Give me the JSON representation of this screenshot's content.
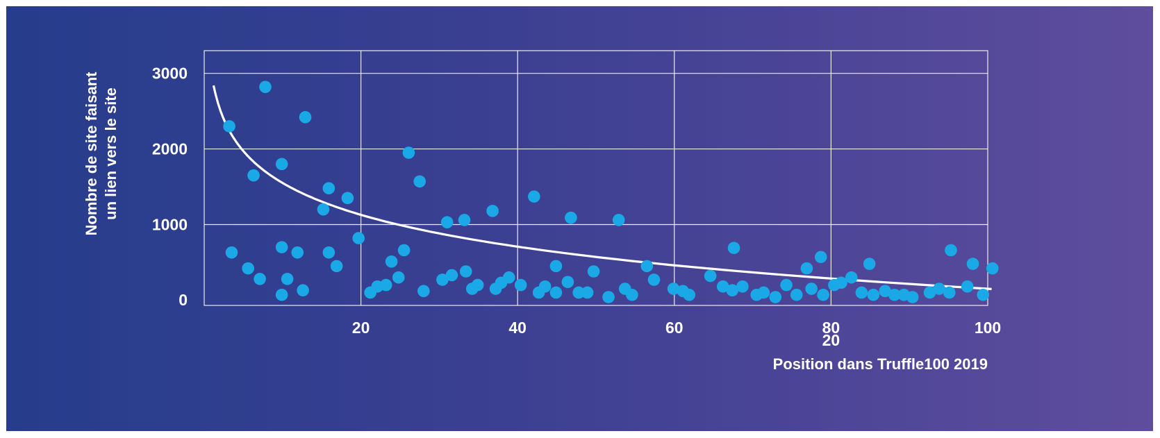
{
  "chart_data": {
    "type": "scatter",
    "title": "",
    "xlabel": "Position dans Truffle100 2019",
    "ylabel_lines": [
      "Nombre de site faisant",
      "un lien vers le site"
    ],
    "xlim": [
      0,
      100
    ],
    "ylim": [
      -70,
      3300
    ],
    "x_ticks": [
      20,
      40,
      60,
      80,
      100
    ],
    "x_tick_labels": [
      "20",
      "40",
      "60",
      "80",
      "100"
    ],
    "extra_label": {
      "text": "20",
      "x": 80
    },
    "y_ticks": [
      0,
      1000,
      2000,
      3000
    ],
    "y_tick_labels": [
      "0",
      "1000",
      "2000",
      "3000"
    ],
    "grid": true,
    "colors": {
      "points": "#1aa9e6",
      "trend": "#ffffff",
      "grid": "#ffffff",
      "text": "#ffffff"
    },
    "trend": {
      "type": "logarithmic",
      "a": 2950,
      "b": -608,
      "x_range": [
        1.2,
        100.5
      ]
    },
    "points": [
      {
        "x": 3.2,
        "y": 2300
      },
      {
        "x": 3.5,
        "y": 630
      },
      {
        "x": 5.6,
        "y": 420
      },
      {
        "x": 6.3,
        "y": 1650
      },
      {
        "x": 7.1,
        "y": 280
      },
      {
        "x": 7.8,
        "y": 2820
      },
      {
        "x": 9.9,
        "y": 1800
      },
      {
        "x": 9.9,
        "y": 700
      },
      {
        "x": 9.9,
        "y": 70
      },
      {
        "x": 10.6,
        "y": 280
      },
      {
        "x": 11.9,
        "y": 630
      },
      {
        "x": 12.6,
        "y": 130
      },
      {
        "x": 12.9,
        "y": 2420
      },
      {
        "x": 15.2,
        "y": 1200
      },
      {
        "x": 15.9,
        "y": 1480
      },
      {
        "x": 15.9,
        "y": 630
      },
      {
        "x": 16.9,
        "y": 450
      },
      {
        "x": 18.3,
        "y": 1350
      },
      {
        "x": 19.7,
        "y": 820
      },
      {
        "x": 21.2,
        "y": 100
      },
      {
        "x": 22.1,
        "y": 180
      },
      {
        "x": 23.2,
        "y": 200
      },
      {
        "x": 23.9,
        "y": 510
      },
      {
        "x": 24.8,
        "y": 300
      },
      {
        "x": 25.5,
        "y": 660
      },
      {
        "x": 26.1,
        "y": 1950
      },
      {
        "x": 27.5,
        "y": 1570
      },
      {
        "x": 28.0,
        "y": 120
      },
      {
        "x": 30.4,
        "y": 270
      },
      {
        "x": 31.0,
        "y": 1030
      },
      {
        "x": 31.6,
        "y": 330
      },
      {
        "x": 33.2,
        "y": 1060
      },
      {
        "x": 33.4,
        "y": 380
      },
      {
        "x": 34.2,
        "y": 150
      },
      {
        "x": 34.9,
        "y": 200
      },
      {
        "x": 36.8,
        "y": 1180
      },
      {
        "x": 37.2,
        "y": 150
      },
      {
        "x": 37.9,
        "y": 230
      },
      {
        "x": 38.9,
        "y": 300
      },
      {
        "x": 40.4,
        "y": 200
      },
      {
        "x": 42.1,
        "y": 1370
      },
      {
        "x": 42.7,
        "y": 100
      },
      {
        "x": 43.5,
        "y": 180
      },
      {
        "x": 44.9,
        "y": 450
      },
      {
        "x": 44.9,
        "y": 100
      },
      {
        "x": 46.4,
        "y": 240
      },
      {
        "x": 46.8,
        "y": 1090
      },
      {
        "x": 47.8,
        "y": 100
      },
      {
        "x": 48.9,
        "y": 100
      },
      {
        "x": 49.7,
        "y": 380
      },
      {
        "x": 51.6,
        "y": 40
      },
      {
        "x": 52.9,
        "y": 1060
      },
      {
        "x": 53.7,
        "y": 150
      },
      {
        "x": 54.6,
        "y": 70
      },
      {
        "x": 56.5,
        "y": 450
      },
      {
        "x": 57.4,
        "y": 270
      },
      {
        "x": 59.9,
        "y": 150
      },
      {
        "x": 61.1,
        "y": 120
      },
      {
        "x": 61.9,
        "y": 70
      },
      {
        "x": 64.6,
        "y": 320
      },
      {
        "x": 66.2,
        "y": 180
      },
      {
        "x": 67.4,
        "y": 130
      },
      {
        "x": 67.6,
        "y": 690
      },
      {
        "x": 68.7,
        "y": 180
      },
      {
        "x": 70.5,
        "y": 70
      },
      {
        "x": 71.4,
        "y": 100
      },
      {
        "x": 72.9,
        "y": 40
      },
      {
        "x": 74.3,
        "y": 200
      },
      {
        "x": 75.6,
        "y": 70
      },
      {
        "x": 76.9,
        "y": 420
      },
      {
        "x": 77.5,
        "y": 150
      },
      {
        "x": 78.7,
        "y": 570
      },
      {
        "x": 79.0,
        "y": 70
      },
      {
        "x": 80.4,
        "y": 200
      },
      {
        "x": 81.3,
        "y": 230
      },
      {
        "x": 82.6,
        "y": 300
      },
      {
        "x": 83.9,
        "y": 100
      },
      {
        "x": 84.9,
        "y": 480
      },
      {
        "x": 85.4,
        "y": 70
      },
      {
        "x": 86.9,
        "y": 120
      },
      {
        "x": 88.1,
        "y": 70
      },
      {
        "x": 89.3,
        "y": 70
      },
      {
        "x": 90.4,
        "y": 40
      },
      {
        "x": 92.6,
        "y": 100
      },
      {
        "x": 93.8,
        "y": 150
      },
      {
        "x": 95.1,
        "y": 100
      },
      {
        "x": 95.3,
        "y": 660
      },
      {
        "x": 97.4,
        "y": 180
      },
      {
        "x": 98.1,
        "y": 480
      },
      {
        "x": 99.4,
        "y": 70
      },
      {
        "x": 100.6,
        "y": 420
      }
    ]
  }
}
